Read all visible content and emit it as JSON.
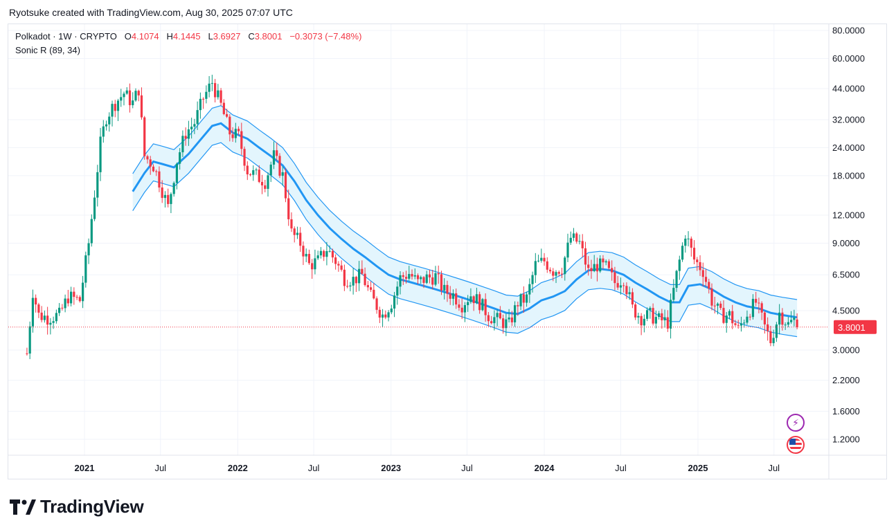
{
  "header": {
    "attribution": "Ryotsuke created with TradingView.com, Aug 30, 2025 07:07 UTC"
  },
  "legend": {
    "symbol": "Polkadot · 1W · CRYPTO",
    "o_label": "O",
    "o_value": "4.1074",
    "h_label": "H",
    "h_value": "4.1445",
    "l_label": "L",
    "l_value": "3.6927",
    "c_label": "C",
    "c_value": "3.8001",
    "change": "−0.3073 (−7.48%)",
    "indicator": "Sonic R (89, 34)"
  },
  "price_badge": "3.8001",
  "brand": {
    "name": "TradingView"
  },
  "icons": {
    "logo": "tradingview-logo-icon",
    "bolt": "lightning-icon",
    "flag": "us-flag-icon"
  },
  "colors": {
    "up": "#089981",
    "down": "#f23645",
    "band_line": "#2196f3",
    "band_fill": "#e3f5fd",
    "grid": "#f0f3fa",
    "price_line": "#f23645"
  },
  "chart_data": {
    "type": "candlestick",
    "symbol": "Polkadot",
    "interval": "1W",
    "scale": "log",
    "ylim": [
      1.0,
      85.0
    ],
    "y_ticks": [
      "80.0000",
      "60.0000",
      "44.0000",
      "32.0000",
      "24.0000",
      "18.0000",
      "12.0000",
      "9.0000",
      "6.5000",
      "4.5000",
      "3.0000",
      "2.2000",
      "1.6000",
      "1.2000"
    ],
    "x_ticks": [
      {
        "label": "2021",
        "date": "2021-01-01",
        "bold": true
      },
      {
        "label": "Jul",
        "date": "2021-07-01",
        "bold": false
      },
      {
        "label": "2022",
        "date": "2022-01-01",
        "bold": true
      },
      {
        "label": "Jul",
        "date": "2022-07-01",
        "bold": false
      },
      {
        "label": "2023",
        "date": "2023-01-01",
        "bold": true
      },
      {
        "label": "Jul",
        "date": "2023-07-01",
        "bold": false
      },
      {
        "label": "2024",
        "date": "2024-01-01",
        "bold": true
      },
      {
        "label": "Jul",
        "date": "2024-07-01",
        "bold": false
      },
      {
        "label": "2025",
        "date": "2025-01-01",
        "bold": true
      },
      {
        "label": "Jul",
        "date": "2025-07-01",
        "bold": false
      }
    ],
    "x_range": [
      "2020-08-10",
      "2025-12-15"
    ],
    "grid": true,
    "last_close": 3.8001,
    "close_path": [
      [
        "2020-08-17",
        2.9
      ],
      [
        "2020-08-31",
        5.5
      ],
      [
        "2020-09-14",
        4.3
      ],
      [
        "2020-10-05",
        4.2
      ],
      [
        "2020-11-02",
        4.3
      ],
      [
        "2020-11-23",
        5.2
      ],
      [
        "2020-12-21",
        5.0
      ],
      [
        "2021-01-11",
        9.0
      ],
      [
        "2021-02-08",
        25.0
      ],
      [
        "2021-02-22",
        33.0
      ],
      [
        "2021-03-15",
        38.0
      ],
      [
        "2021-04-05",
        42.0
      ],
      [
        "2021-04-26",
        38.0
      ],
      [
        "2021-05-10",
        44.0
      ],
      [
        "2021-05-24",
        22.0
      ],
      [
        "2021-06-14",
        20.0
      ],
      [
        "2021-06-28",
        17.0
      ],
      [
        "2021-07-19",
        13.0
      ],
      [
        "2021-08-09",
        21.0
      ],
      [
        "2021-08-30",
        28.0
      ],
      [
        "2021-09-20",
        31.0
      ],
      [
        "2021-10-11",
        40.0
      ],
      [
        "2021-11-01",
        47.0
      ],
      [
        "2021-11-22",
        37.0
      ],
      [
        "2021-12-13",
        28.0
      ],
      [
        "2022-01-03",
        27.0
      ],
      [
        "2022-01-24",
        19.0
      ],
      [
        "2022-02-14",
        18.0
      ],
      [
        "2022-03-07",
        17.0
      ],
      [
        "2022-03-28",
        22.0
      ],
      [
        "2022-04-18",
        18.0
      ],
      [
        "2022-05-09",
        10.0
      ],
      [
        "2022-05-30",
        9.0
      ],
      [
        "2022-06-20",
        7.2
      ],
      [
        "2022-07-11",
        7.5
      ],
      [
        "2022-08-01",
        8.5
      ],
      [
        "2022-08-22",
        7.5
      ],
      [
        "2022-09-12",
        6.3
      ],
      [
        "2022-10-03",
        6.2
      ],
      [
        "2022-10-24",
        6.5
      ],
      [
        "2022-11-14",
        5.2
      ],
      [
        "2022-12-12",
        4.3
      ],
      [
        "2023-01-02",
        4.9
      ],
      [
        "2023-01-23",
        6.3
      ],
      [
        "2023-02-13",
        6.6
      ],
      [
        "2023-03-06",
        6.0
      ],
      [
        "2023-03-27",
        6.3
      ],
      [
        "2023-04-17",
        6.4
      ],
      [
        "2023-05-08",
        5.5
      ],
      [
        "2023-05-29",
        5.3
      ],
      [
        "2023-06-19",
        4.8
      ],
      [
        "2023-07-10",
        5.3
      ],
      [
        "2023-07-31",
        4.9
      ],
      [
        "2023-08-21",
        4.3
      ],
      [
        "2023-09-11",
        4.1
      ],
      [
        "2023-10-09",
        3.9
      ],
      [
        "2023-10-30",
        4.9
      ],
      [
        "2023-11-20",
        5.1
      ],
      [
        "2023-12-11",
        7.2
      ],
      [
        "2024-01-01",
        7.5
      ],
      [
        "2024-01-22",
        6.8
      ],
      [
        "2024-02-12",
        7.0
      ],
      [
        "2024-03-04",
        9.5
      ],
      [
        "2024-03-25",
        9.0
      ],
      [
        "2024-04-15",
        6.7
      ],
      [
        "2024-05-06",
        7.2
      ],
      [
        "2024-05-27",
        7.0
      ],
      [
        "2024-06-17",
        6.0
      ],
      [
        "2024-07-08",
        6.3
      ],
      [
        "2024-07-29",
        4.6
      ],
      [
        "2024-08-19",
        4.2
      ],
      [
        "2024-09-09",
        4.3
      ],
      [
        "2024-09-30",
        4.1
      ],
      [
        "2024-10-21",
        4.0
      ],
      [
        "2024-11-11",
        6.5
      ],
      [
        "2024-12-02",
        10.0
      ],
      [
        "2024-12-23",
        7.6
      ],
      [
        "2025-01-13",
        6.8
      ],
      [
        "2025-02-03",
        5.0
      ],
      [
        "2025-02-24",
        4.3
      ],
      [
        "2025-03-17",
        4.3
      ],
      [
        "2025-04-07",
        3.7
      ],
      [
        "2025-04-28",
        4.4
      ],
      [
        "2025-05-19",
        4.9
      ],
      [
        "2025-06-09",
        3.8
      ],
      [
        "2025-06-23",
        3.3
      ],
      [
        "2025-07-14",
        4.4
      ],
      [
        "2025-08-04",
        3.9
      ],
      [
        "2025-08-18",
        4.1
      ],
      [
        "2025-08-25",
        3.8
      ]
    ],
    "sonic_r": {
      "name": "Sonic R (89, 34)",
      "center": [
        [
          "2021-04-26",
          15.3
        ],
        [
          "2021-05-24",
          18.5
        ],
        [
          "2021-06-14",
          20.8
        ],
        [
          "2021-07-05",
          20.3
        ],
        [
          "2021-08-02",
          19.6
        ],
        [
          "2021-09-06",
          22.5
        ],
        [
          "2021-10-04",
          26.0
        ],
        [
          "2021-11-01",
          30.0
        ],
        [
          "2021-11-22",
          30.8
        ],
        [
          "2021-12-20",
          28.0
        ],
        [
          "2022-01-24",
          26.3
        ],
        [
          "2022-02-21",
          24.0
        ],
        [
          "2022-03-21",
          22.0
        ],
        [
          "2022-04-18",
          20.0
        ],
        [
          "2022-05-16",
          17.0
        ],
        [
          "2022-06-13",
          14.0
        ],
        [
          "2022-07-11",
          12.0
        ],
        [
          "2022-08-08",
          10.5
        ],
        [
          "2022-09-05",
          9.4
        ],
        [
          "2022-10-03",
          8.5
        ],
        [
          "2022-10-31",
          7.8
        ],
        [
          "2022-11-28",
          7.1
        ],
        [
          "2022-12-26",
          6.5
        ],
        [
          "2023-01-23",
          6.2
        ],
        [
          "2023-02-20",
          6.0
        ],
        [
          "2023-03-20",
          5.8
        ],
        [
          "2023-04-17",
          5.6
        ],
        [
          "2023-05-15",
          5.4
        ],
        [
          "2023-06-12",
          5.2
        ],
        [
          "2023-07-10",
          5.0
        ],
        [
          "2023-08-07",
          4.8
        ],
        [
          "2023-09-04",
          4.6
        ],
        [
          "2023-10-02",
          4.4
        ],
        [
          "2023-10-30",
          4.35
        ],
        [
          "2023-11-27",
          4.6
        ],
        [
          "2023-12-25",
          5.0
        ],
        [
          "2024-01-22",
          5.2
        ],
        [
          "2024-02-19",
          5.5
        ],
        [
          "2024-03-18",
          6.2
        ],
        [
          "2024-04-15",
          6.8
        ],
        [
          "2024-05-13",
          6.9
        ],
        [
          "2024-06-10",
          6.8
        ],
        [
          "2024-07-08",
          6.5
        ],
        [
          "2024-08-05",
          6.0
        ],
        [
          "2024-09-02",
          5.6
        ],
        [
          "2024-09-30",
          5.2
        ],
        [
          "2024-10-28",
          4.9
        ],
        [
          "2024-11-18",
          4.9
        ],
        [
          "2024-12-09",
          5.8
        ],
        [
          "2025-01-06",
          5.9
        ],
        [
          "2025-02-03",
          5.6
        ],
        [
          "2025-03-03",
          5.2
        ],
        [
          "2025-03-31",
          4.9
        ],
        [
          "2025-04-28",
          4.7
        ],
        [
          "2025-05-26",
          4.6
        ],
        [
          "2025-06-23",
          4.4
        ],
        [
          "2025-07-21",
          4.3
        ],
        [
          "2025-08-25",
          4.2
        ]
      ],
      "band_upper_ratio": 1.2,
      "band_lower_ratio": 0.82
    }
  }
}
